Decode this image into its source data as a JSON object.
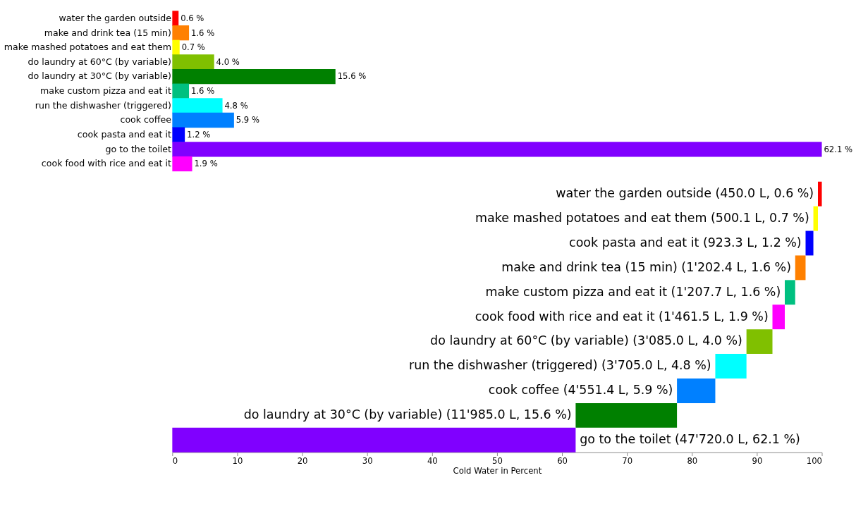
{
  "chart_data": [
    {
      "type": "bar",
      "orientation": "horizontal",
      "tick_labels": "y",
      "categories": [
        "water the garden outside",
        "make and drink tea (15 min)",
        "make mashed potatoes and eat them",
        "do laundry at 60°C (by variable)",
        "do laundry at 30°C (by variable)",
        "make custom pizza and eat it",
        "run the dishwasher (triggered)",
        "cook coffee",
        "cook pasta and eat it",
        "go to the toilet",
        "cook food with rice and eat it"
      ],
      "values": [
        0.6,
        1.6,
        0.7,
        4.0,
        15.6,
        1.6,
        4.8,
        5.9,
        1.2,
        62.1,
        1.9
      ],
      "value_labels": [
        "0.6 %",
        "1.6 %",
        "0.7 %",
        "4.0 %",
        "15.6 %",
        "1.6 %",
        "4.8 %",
        "5.9 %",
        "1.2 %",
        "62.1 %",
        "1.9 %"
      ],
      "colors": [
        "#ff0000",
        "#ff8000",
        "#ffff00",
        "#80c000",
        "#008000",
        "#00c080",
        "#00ffff",
        "#0080ff",
        "#0000ff",
        "#8000ff",
        "#ff00ff"
      ]
    },
    {
      "type": "bar",
      "orientation": "horizontal",
      "tick_labels": "x",
      "xlabel": "Cold Water in Percent",
      "xlim": [
        0,
        100
      ],
      "xticks": [
        0,
        10,
        20,
        30,
        40,
        50,
        60,
        70,
        80,
        90,
        100
      ],
      "categories": [
        "water the garden outside (450.0 L, 0.6 %)",
        "make mashed potatoes and eat them (500.1 L, 0.7 %)",
        "cook pasta and eat it (923.3 L, 1.2 %)",
        "make and drink tea (15 min) (1'202.4 L, 1.6 %)",
        "make custom pizza and eat it (1'207.7 L, 1.6 %)",
        "cook food with rice and eat it (1'461.5 L, 1.9 %)",
        "do laundry at 60°C (by variable) (3'085.0 L, 4.0 %)",
        "run the dishwasher (triggered) (3'705.0 L, 4.8 %)",
        "cook coffee (4'551.4 L, 5.9 %)",
        "do laundry at 30°C (by variable) (11'985.0 L, 15.6 %)",
        "go to the toilet (47'720.0 L, 62.1 %)"
      ],
      "values": [
        0.6,
        0.7,
        1.2,
        1.6,
        1.6,
        1.9,
        4.0,
        4.8,
        5.9,
        15.6,
        62.1
      ],
      "base": [
        99.4,
        98.7,
        97.5,
        95.9,
        94.3,
        92.4,
        88.4,
        83.6,
        77.7,
        62.1,
        0
      ],
      "colors": [
        "#ff0000",
        "#ffff00",
        "#0000ff",
        "#ff8000",
        "#00c080",
        "#ff00ff",
        "#80c000",
        "#00ffff",
        "#0080ff",
        "#008000",
        "#8000ff"
      ]
    }
  ]
}
